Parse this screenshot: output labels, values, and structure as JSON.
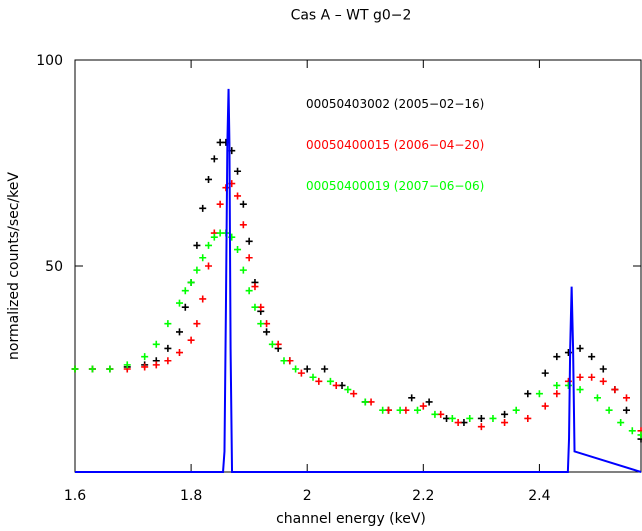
{
  "chart_data": {
    "type": "scatter",
    "title": "Cas A – WT g0−2",
    "xlabel": "channel energy (keV)",
    "ylabel": "normalized counts/sec/keV",
    "xlim": [
      1.6,
      2.575
    ],
    "ylim": [
      0,
      100
    ],
    "xticks": [
      1.6,
      1.8,
      2,
      2.2,
      2.4
    ],
    "xtick_labels": [
      "1.6",
      "1.8",
      "2",
      "2.2",
      "2.4"
    ],
    "yticks": [
      50,
      100
    ],
    "ytick_labels": [
      "50",
      "100"
    ],
    "series": [
      {
        "name": "00050403002 (2005−02−16)",
        "color": "#000000",
        "marker": "plus",
        "x": [
          1.6,
          1.63,
          1.66,
          1.69,
          1.72,
          1.74,
          1.76,
          1.78,
          1.79,
          1.8,
          1.81,
          1.82,
          1.83,
          1.84,
          1.85,
          1.86,
          1.87,
          1.88,
          1.89,
          1.9,
          1.91,
          1.92,
          1.93,
          1.95,
          1.97,
          2.0,
          2.03,
          2.06,
          2.1,
          2.14,
          2.18,
          2.21,
          2.24,
          2.27,
          2.3,
          2.34,
          2.38,
          2.41,
          2.43,
          2.45,
          2.47,
          2.49,
          2.51,
          2.53,
          2.55,
          2.575
        ],
        "y": [
          25,
          25,
          25,
          25.5,
          26,
          27,
          30,
          34,
          40,
          46,
          55,
          64,
          71,
          76,
          80,
          80,
          78,
          73,
          65,
          56,
          46,
          39,
          34,
          30,
          27,
          25,
          25,
          21,
          17,
          15,
          18,
          17,
          13,
          12,
          13,
          14,
          19,
          24,
          28,
          29,
          30,
          28,
          25,
          20,
          15,
          8
        ]
      },
      {
        "name": "00050400015 (2006−04−20)",
        "color": "#ff0000",
        "marker": "plus",
        "x": [
          1.6,
          1.63,
          1.66,
          1.69,
          1.72,
          1.74,
          1.76,
          1.78,
          1.8,
          1.81,
          1.82,
          1.83,
          1.84,
          1.85,
          1.86,
          1.87,
          1.88,
          1.89,
          1.9,
          1.91,
          1.92,
          1.93,
          1.95,
          1.97,
          1.99,
          2.02,
          2.05,
          2.08,
          2.11,
          2.14,
          2.17,
          2.2,
          2.23,
          2.26,
          2.3,
          2.34,
          2.38,
          2.41,
          2.43,
          2.45,
          2.47,
          2.49,
          2.51,
          2.53,
          2.55,
          2.575
        ],
        "y": [
          25,
          25,
          25,
          25,
          25.5,
          26,
          27,
          29,
          32,
          36,
          42,
          50,
          58,
          65,
          69,
          70,
          67,
          60,
          52,
          45,
          40,
          36,
          31,
          27,
          24,
          22,
          21,
          19,
          17,
          15,
          15,
          16,
          14,
          12,
          11,
          12,
          13,
          16,
          19,
          22,
          23,
          23,
          22,
          20,
          18,
          10
        ]
      },
      {
        "name": "00050400019 (2007−06−06)",
        "color": "#00ff00",
        "marker": "plus",
        "x": [
          1.6,
          1.63,
          1.66,
          1.69,
          1.72,
          1.74,
          1.76,
          1.78,
          1.79,
          1.8,
          1.81,
          1.82,
          1.83,
          1.84,
          1.85,
          1.86,
          1.87,
          1.88,
          1.89,
          1.9,
          1.91,
          1.92,
          1.94,
          1.96,
          1.98,
          2.01,
          2.04,
          2.07,
          2.1,
          2.13,
          2.16,
          2.19,
          2.22,
          2.25,
          2.28,
          2.32,
          2.36,
          2.4,
          2.43,
          2.45,
          2.47,
          2.5,
          2.52,
          2.54,
          2.56,
          2.575
        ],
        "y": [
          25,
          25,
          25,
          26,
          28,
          31,
          36,
          41,
          44,
          46,
          49,
          52,
          55,
          57,
          58,
          58,
          57,
          54,
          49,
          44,
          40,
          36,
          31,
          27,
          25,
          23,
          22,
          20,
          17,
          15,
          15,
          15,
          14,
          13,
          13,
          13,
          15,
          19,
          21,
          21,
          20,
          18,
          15,
          12,
          10,
          9
        ]
      },
      {
        "name": "",
        "color": "#0000ff",
        "marker": "line",
        "x": [
          1.6,
          1.855,
          1.8575,
          1.86,
          1.8625,
          1.8645,
          1.866,
          1.868,
          1.8705,
          2.449,
          2.451,
          2.453,
          2.4555,
          2.458,
          2.4605,
          2.575
        ],
        "y": [
          0,
          0,
          5,
          40,
          80,
          93,
          80,
          30,
          0,
          0,
          8,
          30,
          45,
          30,
          5,
          0
        ]
      }
    ]
  }
}
